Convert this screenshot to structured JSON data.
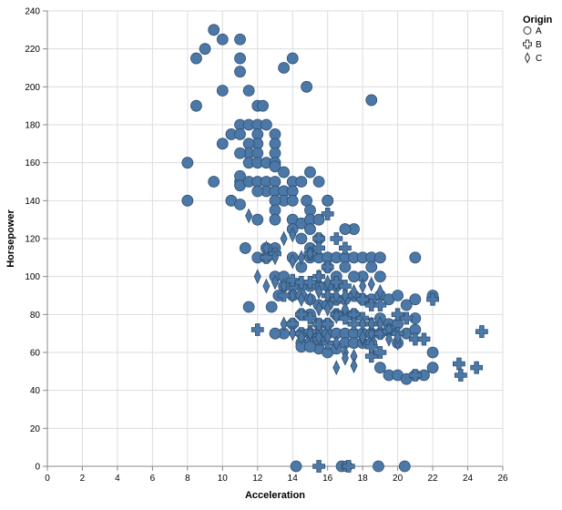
{
  "chart_data": {
    "type": "scatter",
    "title": "",
    "xlabel": "Acceleration",
    "ylabel": "Horsepower",
    "xlim": [
      0,
      26
    ],
    "ylim": [
      0,
      240
    ],
    "xticks": [
      "0",
      "2",
      "4",
      "6",
      "8",
      "10",
      "12",
      "14",
      "16",
      "18",
      "20",
      "22",
      "24",
      "26"
    ],
    "yticks": [
      "0",
      "20",
      "40",
      "60",
      "80",
      "100",
      "120",
      "140",
      "160",
      "180",
      "200",
      "220",
      "240"
    ],
    "grid": true,
    "legend": {
      "title": "Origin",
      "position": "top-right"
    },
    "colors": {
      "mark": "#4c78a8",
      "stroke": "#2f4f6f",
      "grid": "#dddddd",
      "axis": "#888888"
    },
    "series": [
      {
        "name": "A",
        "shape": "circle",
        "points": [
          [
            9.5,
            230
          ],
          [
            11.0,
            225
          ],
          [
            10.0,
            225
          ],
          [
            8.5,
            215
          ],
          [
            9.0,
            220
          ],
          [
            11.0,
            215
          ],
          [
            11.0,
            208
          ],
          [
            14.0,
            215
          ],
          [
            13.5,
            210
          ],
          [
            8.5,
            190
          ],
          [
            10.0,
            198
          ],
          [
            11.5,
            198
          ],
          [
            14.8,
            200
          ],
          [
            18.5,
            193
          ],
          [
            12.0,
            190
          ],
          [
            12.3,
            190
          ],
          [
            8.0,
            160
          ],
          [
            8.0,
            140
          ],
          [
            9.5,
            150
          ],
          [
            10.0,
            170
          ],
          [
            10.5,
            175
          ],
          [
            11.0,
            180
          ],
          [
            11.0,
            175
          ],
          [
            11.5,
            180
          ],
          [
            12.0,
            180
          ],
          [
            12.0,
            175
          ],
          [
            12.0,
            170
          ],
          [
            11.5,
            170
          ],
          [
            11.5,
            165
          ],
          [
            12.0,
            165
          ],
          [
            12.5,
            180
          ],
          [
            11.0,
            165
          ],
          [
            11.5,
            160
          ],
          [
            12.0,
            160
          ],
          [
            13.0,
            175
          ],
          [
            13.0,
            170
          ],
          [
            13.0,
            165
          ],
          [
            12.5,
            160
          ],
          [
            13.0,
            160
          ],
          [
            11.0,
            150
          ],
          [
            11.0,
            153
          ],
          [
            11.0,
            148
          ],
          [
            11.5,
            150
          ],
          [
            12.0,
            150
          ],
          [
            12.5,
            150
          ],
          [
            12.5,
            145
          ],
          [
            12.0,
            145
          ],
          [
            13.0,
            158
          ],
          [
            13.5,
            155
          ],
          [
            14.0,
            150
          ],
          [
            13.0,
            150
          ],
          [
            13.0,
            145
          ],
          [
            13.5,
            145
          ],
          [
            14.0,
            145
          ],
          [
            13.5,
            140
          ],
          [
            13.0,
            140
          ],
          [
            14.0,
            140
          ],
          [
            13.0,
            135
          ],
          [
            14.5,
            150
          ],
          [
            15.0,
            155
          ],
          [
            15.5,
            150
          ],
          [
            14.8,
            140
          ],
          [
            15.0,
            135
          ],
          [
            16.0,
            140
          ],
          [
            16.0,
            140
          ],
          [
            10.5,
            140
          ],
          [
            11.0,
            138
          ],
          [
            12.0,
            130
          ],
          [
            13.0,
            130
          ],
          [
            14.0,
            130
          ],
          [
            14.5,
            120
          ],
          [
            14.0,
            125
          ],
          [
            14.5,
            128
          ],
          [
            15.0,
            130
          ],
          [
            15.5,
            130
          ],
          [
            15.0,
            125
          ],
          [
            15.5,
            120
          ],
          [
            15.0,
            115
          ],
          [
            14.0,
            110
          ],
          [
            14.5,
            105
          ],
          [
            15.0,
            110
          ],
          [
            15.5,
            110
          ],
          [
            16.0,
            110
          ],
          [
            16.5,
            110
          ],
          [
            16.0,
            105
          ],
          [
            16.5,
            100
          ],
          [
            17.0,
            110
          ],
          [
            17.0,
            105
          ],
          [
            17.5,
            110
          ],
          [
            17.5,
            125
          ],
          [
            17.0,
            125
          ],
          [
            18.0,
            110
          ],
          [
            18.5,
            110
          ],
          [
            19.0,
            110
          ],
          [
            18.5,
            105
          ],
          [
            19.0,
            100
          ],
          [
            18.0,
            100
          ],
          [
            17.5,
            100
          ],
          [
            16.5,
            95
          ],
          [
            16.0,
            95
          ],
          [
            15.5,
            95
          ],
          [
            15.0,
            95
          ],
          [
            14.5,
            95
          ],
          [
            14.0,
            95
          ],
          [
            13.5,
            95
          ],
          [
            13.0,
            100
          ],
          [
            13.5,
            100
          ],
          [
            12.5,
            110
          ],
          [
            12.0,
            110
          ],
          [
            13.0,
            115
          ],
          [
            12.5,
            115
          ],
          [
            11.3,
            115
          ],
          [
            11.5,
            84
          ],
          [
            12.8,
            84
          ],
          [
            13.2,
            90
          ],
          [
            14.0,
            90
          ],
          [
            14.5,
            90
          ],
          [
            15.0,
            88
          ],
          [
            15.5,
            85
          ],
          [
            16.0,
            85
          ],
          [
            16.5,
            88
          ],
          [
            17.0,
            88
          ],
          [
            17.5,
            90
          ],
          [
            18.0,
            88
          ],
          [
            18.5,
            88
          ],
          [
            19.0,
            90
          ],
          [
            19.5,
            88
          ],
          [
            20.0,
            90
          ],
          [
            20.5,
            85
          ],
          [
            21.0,
            88
          ],
          [
            21.0,
            110
          ],
          [
            22.0,
            90
          ],
          [
            19.0,
            78
          ],
          [
            19.5,
            75
          ],
          [
            20.0,
            75
          ],
          [
            20.5,
            70
          ],
          [
            21.0,
            78
          ],
          [
            21.0,
            72
          ],
          [
            22.0,
            60
          ],
          [
            22.0,
            52
          ],
          [
            17.5,
            80
          ],
          [
            17.0,
            80
          ],
          [
            16.5,
            80
          ],
          [
            16.0,
            75
          ],
          [
            15.5,
            75
          ],
          [
            15.0,
            80
          ],
          [
            14.5,
            80
          ],
          [
            14.0,
            75
          ],
          [
            13.5,
            70
          ],
          [
            13.0,
            70
          ],
          [
            14.5,
            70
          ],
          [
            15.0,
            70
          ],
          [
            15.5,
            70
          ],
          [
            16.0,
            70
          ],
          [
            16.5,
            70
          ],
          [
            17.0,
            70
          ],
          [
            17.5,
            70
          ],
          [
            18.0,
            70
          ],
          [
            18.5,
            70
          ],
          [
            19.0,
            70
          ],
          [
            19.5,
            72
          ],
          [
            20.0,
            65
          ],
          [
            14.5,
            65
          ],
          [
            15.0,
            65
          ],
          [
            15.5,
            62
          ],
          [
            16.0,
            60
          ],
          [
            16.5,
            62
          ],
          [
            17.0,
            65
          ],
          [
            17.5,
            65
          ],
          [
            18.0,
            65
          ],
          [
            18.5,
            65
          ],
          [
            19.0,
            52
          ],
          [
            19.5,
            48
          ],
          [
            20.0,
            48
          ],
          [
            20.5,
            46
          ],
          [
            21.0,
            48
          ],
          [
            21.5,
            48
          ],
          [
            14.5,
            63
          ],
          [
            15.0,
            63
          ],
          [
            14.2,
            0
          ],
          [
            16.8,
            0
          ],
          [
            17.1,
            0
          ],
          [
            18.9,
            0
          ],
          [
            20.4,
            0
          ]
        ]
      },
      {
        "name": "B",
        "shape": "cross",
        "points": [
          [
            16.0,
            133
          ],
          [
            15.5,
            120
          ],
          [
            16.5,
            120
          ],
          [
            17.0,
            115
          ],
          [
            15.5,
            115
          ],
          [
            15.0,
            112
          ],
          [
            13.0,
            112
          ],
          [
            12.5,
            110
          ],
          [
            12.0,
            72
          ],
          [
            14.0,
            75
          ],
          [
            14.5,
            70
          ],
          [
            15.0,
            71
          ],
          [
            15.5,
            75
          ],
          [
            16.0,
            75
          ],
          [
            16.5,
            80
          ],
          [
            17.0,
            78
          ],
          [
            17.5,
            80
          ],
          [
            18.0,
            78
          ],
          [
            18.5,
            75
          ],
          [
            19.0,
            70
          ],
          [
            19.5,
            71
          ],
          [
            20.0,
            80
          ],
          [
            20.5,
            78
          ],
          [
            21.0,
            67
          ],
          [
            21.5,
            67
          ],
          [
            22.0,
            88
          ],
          [
            23.5,
            54
          ],
          [
            23.6,
            48
          ],
          [
            24.5,
            52
          ],
          [
            24.8,
            71
          ],
          [
            18.5,
            58
          ],
          [
            19.0,
            60
          ],
          [
            15.5,
            100
          ],
          [
            16.0,
            105
          ],
          [
            16.5,
            97
          ],
          [
            17.0,
            95
          ],
          [
            17.5,
            90
          ],
          [
            18.0,
            88
          ],
          [
            18.5,
            85
          ],
          [
            19.0,
            85
          ],
          [
            20.0,
            70
          ],
          [
            21.0,
            48
          ],
          [
            15.5,
            0
          ],
          [
            17.2,
            0
          ],
          [
            13.5,
            90
          ],
          [
            14.0,
            98
          ],
          [
            14.5,
            97
          ],
          [
            15.0,
            97
          ],
          [
            16.0,
            90
          ],
          [
            16.5,
            88
          ],
          [
            14.5,
            80
          ],
          [
            15.0,
            78
          ],
          [
            15.5,
            67
          ],
          [
            16.0,
            65
          ],
          [
            17.5,
            75
          ],
          [
            18.5,
            63
          ]
        ]
      },
      {
        "name": "C",
        "shape": "diamond",
        "points": [
          [
            11.5,
            132
          ],
          [
            12.5,
            115
          ],
          [
            13.5,
            120
          ],
          [
            14.0,
            122
          ],
          [
            12.0,
            100
          ],
          [
            12.5,
            95
          ],
          [
            13.0,
            97
          ],
          [
            13.5,
            95
          ],
          [
            14.0,
            90
          ],
          [
            14.5,
            88
          ],
          [
            15.0,
            88
          ],
          [
            15.5,
            92
          ],
          [
            16.0,
            90
          ],
          [
            16.5,
            90
          ],
          [
            17.0,
            90
          ],
          [
            17.5,
            92
          ],
          [
            18.0,
            95
          ],
          [
            18.5,
            96
          ],
          [
            19.0,
            92
          ],
          [
            13.5,
            75
          ],
          [
            14.0,
            70
          ],
          [
            14.5,
            68
          ],
          [
            15.0,
            70
          ],
          [
            15.5,
            68
          ],
          [
            16.0,
            68
          ],
          [
            16.5,
            65
          ],
          [
            17.0,
            60
          ],
          [
            17.5,
            58
          ],
          [
            18.0,
            67
          ],
          [
            18.5,
            70
          ],
          [
            19.0,
            75
          ],
          [
            19.5,
            72
          ],
          [
            20.0,
            65
          ],
          [
            16.5,
            52
          ],
          [
            17.0,
            57
          ],
          [
            17.5,
            53
          ],
          [
            18.0,
            68
          ],
          [
            18.5,
            70
          ],
          [
            19.5,
            67
          ],
          [
            20.0,
            68
          ],
          [
            15.5,
            83
          ],
          [
            16.0,
            83
          ],
          [
            16.5,
            79
          ],
          [
            17.0,
            83
          ],
          [
            13.0,
            110
          ],
          [
            14.0,
            108
          ],
          [
            14.5,
            110
          ],
          [
            15.0,
            112
          ],
          [
            15.5,
            100
          ],
          [
            16.0,
            97
          ],
          [
            18.0,
            75
          ],
          [
            18.5,
            75
          ]
        ]
      }
    ]
  }
}
